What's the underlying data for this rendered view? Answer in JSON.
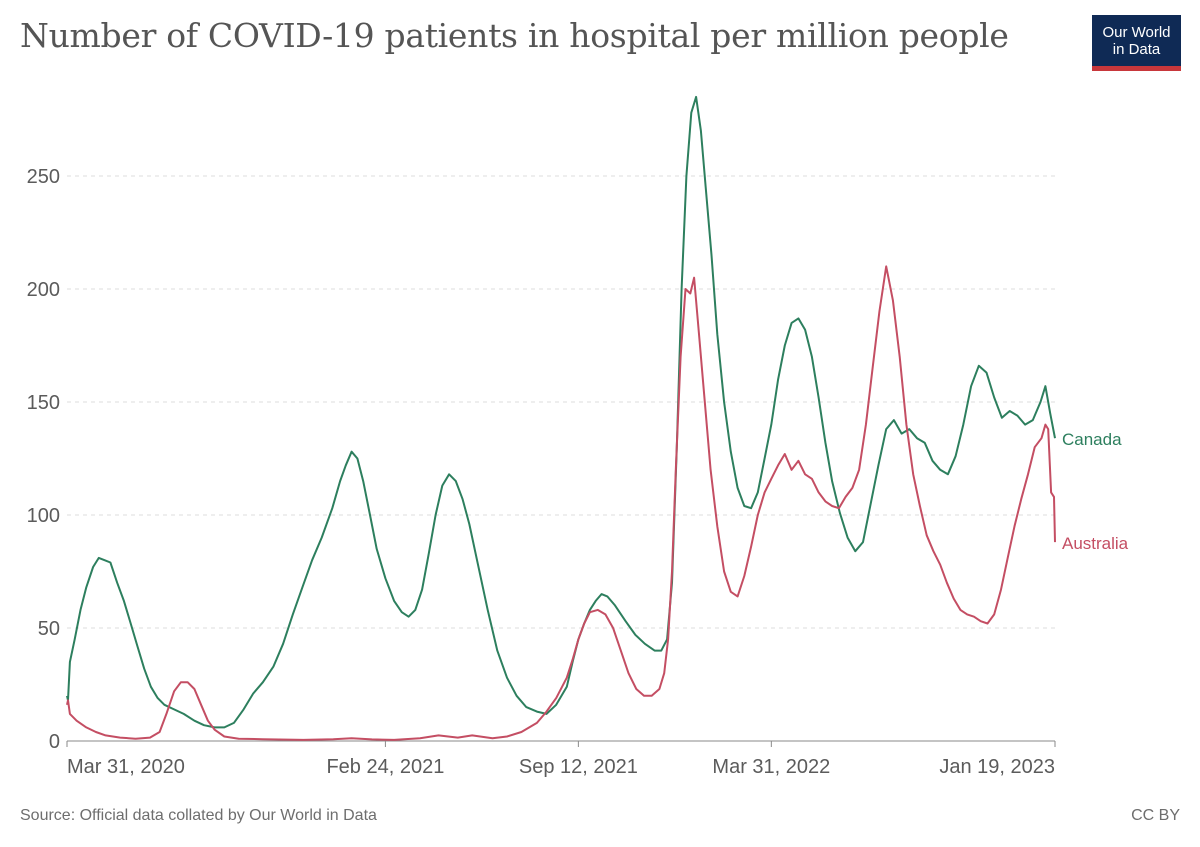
{
  "header": {
    "title": "Number of COVID-19 patients in hospital per million people",
    "logo_line1": "Our World",
    "logo_line2": "in Data"
  },
  "footer": {
    "source": "Source: Official data collated by Our World in Data",
    "license": "CC BY"
  },
  "colors": {
    "canada": "#2d7f5e",
    "australia": "#c44e63",
    "grid": "#dddddd",
    "axis_text": "#5b5b5b",
    "logo_bg": "#0f2a55",
    "logo_accent": "#c8373b"
  },
  "chart_data": {
    "type": "line",
    "title": "Number of COVID-19 patients in hospital per million people",
    "xlabel": "",
    "ylabel": "",
    "x_range": [
      "2020-03-31",
      "2023-01-19"
    ],
    "ylim": [
      0,
      280
    ],
    "y_ticks": [
      0,
      50,
      100,
      150,
      200,
      250
    ],
    "x_ticks": [
      "Mar 31, 2020",
      "Feb 24, 2021",
      "Sep 12, 2021",
      "Mar 31, 2022",
      "Jan 19, 2023"
    ],
    "grid": "horizontal dashed",
    "legend_placement": "inline labels at line ends (right)",
    "series": [
      {
        "name": "Canada",
        "color": "#2d7f5e",
        "points": [
          [
            "2020-03-31",
            20
          ],
          [
            "2020-04-01",
            18
          ],
          [
            "2020-04-03",
            35
          ],
          [
            "2020-04-08",
            45
          ],
          [
            "2020-04-14",
            58
          ],
          [
            "2020-04-20",
            68
          ],
          [
            "2020-04-27",
            77
          ],
          [
            "2020-05-03",
            81
          ],
          [
            "2020-05-09",
            80
          ],
          [
            "2020-05-15",
            79
          ],
          [
            "2020-05-22",
            70
          ],
          [
            "2020-05-29",
            62
          ],
          [
            "2020-06-05",
            52
          ],
          [
            "2020-06-12",
            42
          ],
          [
            "2020-06-19",
            32
          ],
          [
            "2020-06-26",
            24
          ],
          [
            "2020-07-03",
            19
          ],
          [
            "2020-07-10",
            16
          ],
          [
            "2020-07-20",
            14
          ],
          [
            "2020-07-30",
            12
          ],
          [
            "2020-08-10",
            9
          ],
          [
            "2020-08-20",
            7
          ],
          [
            "2020-08-31",
            6
          ],
          [
            "2020-09-10",
            6
          ],
          [
            "2020-09-20",
            8
          ],
          [
            "2020-09-30",
            14
          ],
          [
            "2020-10-10",
            21
          ],
          [
            "2020-10-20",
            26
          ],
          [
            "2020-10-31",
            33
          ],
          [
            "2020-11-10",
            43
          ],
          [
            "2020-11-20",
            56
          ],
          [
            "2020-11-30",
            68
          ],
          [
            "2020-12-10",
            80
          ],
          [
            "2020-12-20",
            90
          ],
          [
            "2020-12-31",
            103
          ],
          [
            "2021-01-08",
            115
          ],
          [
            "2021-01-14",
            122
          ],
          [
            "2021-01-20",
            128
          ],
          [
            "2021-01-26",
            125
          ],
          [
            "2021-02-01",
            115
          ],
          [
            "2021-02-08",
            100
          ],
          [
            "2021-02-15",
            85
          ],
          [
            "2021-02-24",
            72
          ],
          [
            "2021-03-05",
            62
          ],
          [
            "2021-03-13",
            57
          ],
          [
            "2021-03-20",
            55
          ],
          [
            "2021-03-27",
            58
          ],
          [
            "2021-04-03",
            67
          ],
          [
            "2021-04-10",
            83
          ],
          [
            "2021-04-17",
            100
          ],
          [
            "2021-04-24",
            113
          ],
          [
            "2021-05-01",
            118
          ],
          [
            "2021-05-08",
            115
          ],
          [
            "2021-05-15",
            107
          ],
          [
            "2021-05-22",
            96
          ],
          [
            "2021-05-31",
            78
          ],
          [
            "2021-06-10",
            58
          ],
          [
            "2021-06-20",
            40
          ],
          [
            "2021-06-30",
            28
          ],
          [
            "2021-07-10",
            20
          ],
          [
            "2021-07-20",
            15
          ],
          [
            "2021-07-31",
            13
          ],
          [
            "2021-08-10",
            12
          ],
          [
            "2021-08-20",
            16
          ],
          [
            "2021-08-31",
            24
          ],
          [
            "2021-09-06",
            35
          ],
          [
            "2021-09-12",
            45
          ],
          [
            "2021-09-18",
            52
          ],
          [
            "2021-09-24",
            58
          ],
          [
            "2021-09-30",
            62
          ],
          [
            "2021-10-06",
            65
          ],
          [
            "2021-10-12",
            64
          ],
          [
            "2021-10-20",
            60
          ],
          [
            "2021-10-31",
            53
          ],
          [
            "2021-11-10",
            47
          ],
          [
            "2021-11-20",
            43
          ],
          [
            "2021-11-30",
            40
          ],
          [
            "2021-12-07",
            40
          ],
          [
            "2021-12-13",
            45
          ],
          [
            "2021-12-18",
            70
          ],
          [
            "2021-12-23",
            130
          ],
          [
            "2021-12-28",
            200
          ],
          [
            "2022-01-02",
            250
          ],
          [
            "2022-01-07",
            278
          ],
          [
            "2022-01-12",
            285
          ],
          [
            "2022-01-17",
            270
          ],
          [
            "2022-01-22",
            245
          ],
          [
            "2022-01-28",
            215
          ],
          [
            "2022-02-03",
            180
          ],
          [
            "2022-02-10",
            150
          ],
          [
            "2022-02-17",
            128
          ],
          [
            "2022-02-24",
            112
          ],
          [
            "2022-03-03",
            104
          ],
          [
            "2022-03-10",
            103
          ],
          [
            "2022-03-17",
            110
          ],
          [
            "2022-03-24",
            125
          ],
          [
            "2022-03-31",
            140
          ],
          [
            "2022-04-07",
            160
          ],
          [
            "2022-04-14",
            175
          ],
          [
            "2022-04-21",
            185
          ],
          [
            "2022-04-28",
            187
          ],
          [
            "2022-05-05",
            182
          ],
          [
            "2022-05-12",
            170
          ],
          [
            "2022-05-19",
            152
          ],
          [
            "2022-05-26",
            132
          ],
          [
            "2022-06-02",
            115
          ],
          [
            "2022-06-10",
            101
          ],
          [
            "2022-06-18",
            90
          ],
          [
            "2022-06-26",
            84
          ],
          [
            "2022-07-04",
            88
          ],
          [
            "2022-07-12",
            105
          ],
          [
            "2022-07-20",
            122
          ],
          [
            "2022-07-28",
            138
          ],
          [
            "2022-08-05",
            142
          ],
          [
            "2022-08-13",
            136
          ],
          [
            "2022-08-21",
            138
          ],
          [
            "2022-08-29",
            134
          ],
          [
            "2022-09-06",
            132
          ],
          [
            "2022-09-14",
            124
          ],
          [
            "2022-09-22",
            120
          ],
          [
            "2022-09-30",
            118
          ],
          [
            "2022-10-08",
            126
          ],
          [
            "2022-10-16",
            140
          ],
          [
            "2022-10-24",
            157
          ],
          [
            "2022-11-01",
            166
          ],
          [
            "2022-11-09",
            163
          ],
          [
            "2022-11-17",
            152
          ],
          [
            "2022-11-25",
            143
          ],
          [
            "2022-12-03",
            146
          ],
          [
            "2022-12-11",
            144
          ],
          [
            "2022-12-19",
            140
          ],
          [
            "2022-12-27",
            142
          ],
          [
            "2023-01-04",
            150
          ],
          [
            "2023-01-09",
            157
          ],
          [
            "2023-01-14",
            145
          ],
          [
            "2023-01-19",
            134
          ]
        ]
      },
      {
        "name": "Australia",
        "color": "#c44e63",
        "points": [
          [
            "2020-03-31",
            16
          ],
          [
            "2020-04-01",
            18
          ],
          [
            "2020-04-03",
            12
          ],
          [
            "2020-04-10",
            9
          ],
          [
            "2020-04-20",
            6
          ],
          [
            "2020-04-30",
            4
          ],
          [
            "2020-05-10",
            2.5
          ],
          [
            "2020-05-25",
            1.5
          ],
          [
            "2020-06-10",
            1
          ],
          [
            "2020-06-25",
            1.5
          ],
          [
            "2020-07-05",
            4
          ],
          [
            "2020-07-12",
            12
          ],
          [
            "2020-07-20",
            22
          ],
          [
            "2020-07-27",
            26
          ],
          [
            "2020-08-03",
            26
          ],
          [
            "2020-08-10",
            23
          ],
          [
            "2020-08-17",
            16
          ],
          [
            "2020-08-24",
            9
          ],
          [
            "2020-08-31",
            5
          ],
          [
            "2020-09-10",
            2
          ],
          [
            "2020-09-25",
            1
          ],
          [
            "2020-10-20",
            0.8
          ],
          [
            "2020-12-01",
            0.5
          ],
          [
            "2021-01-01",
            0.8
          ],
          [
            "2021-01-20",
            1.2
          ],
          [
            "2021-02-10",
            0.7
          ],
          [
            "2021-03-05",
            0.5
          ],
          [
            "2021-04-01",
            1.2
          ],
          [
            "2021-04-20",
            2.5
          ],
          [
            "2021-05-10",
            1.5
          ],
          [
            "2021-05-25",
            2.5
          ],
          [
            "2021-06-15",
            1.2
          ],
          [
            "2021-06-30",
            2
          ],
          [
            "2021-07-15",
            4
          ],
          [
            "2021-07-31",
            8
          ],
          [
            "2021-08-10",
            13
          ],
          [
            "2021-08-20",
            19
          ],
          [
            "2021-08-31",
            28
          ],
          [
            "2021-09-06",
            36
          ],
          [
            "2021-09-12",
            45
          ],
          [
            "2021-09-18",
            52
          ],
          [
            "2021-09-24",
            57
          ],
          [
            "2021-10-02",
            58
          ],
          [
            "2021-10-10",
            56
          ],
          [
            "2021-10-18",
            50
          ],
          [
            "2021-10-26",
            40
          ],
          [
            "2021-11-03",
            30
          ],
          [
            "2021-11-11",
            23
          ],
          [
            "2021-11-19",
            20
          ],
          [
            "2021-11-27",
            20
          ],
          [
            "2021-12-05",
            23
          ],
          [
            "2021-12-10",
            30
          ],
          [
            "2021-12-14",
            45
          ],
          [
            "2021-12-18",
            75
          ],
          [
            "2021-12-22",
            120
          ],
          [
            "2021-12-27",
            170
          ],
          [
            "2022-01-01",
            200
          ],
          [
            "2022-01-06",
            198
          ],
          [
            "2022-01-10",
            205
          ],
          [
            "2022-01-15",
            180
          ],
          [
            "2022-01-21",
            150
          ],
          [
            "2022-01-27",
            120
          ],
          [
            "2022-02-03",
            95
          ],
          [
            "2022-02-10",
            75
          ],
          [
            "2022-02-17",
            66
          ],
          [
            "2022-02-24",
            64
          ],
          [
            "2022-03-03",
            73
          ],
          [
            "2022-03-10",
            86
          ],
          [
            "2022-03-17",
            100
          ],
          [
            "2022-03-24",
            110
          ],
          [
            "2022-03-31",
            116
          ],
          [
            "2022-04-07",
            122
          ],
          [
            "2022-04-14",
            127
          ],
          [
            "2022-04-21",
            120
          ],
          [
            "2022-04-28",
            124
          ],
          [
            "2022-05-05",
            118
          ],
          [
            "2022-05-12",
            116
          ],
          [
            "2022-05-19",
            110
          ],
          [
            "2022-05-26",
            106
          ],
          [
            "2022-06-02",
            104
          ],
          [
            "2022-06-09",
            103
          ],
          [
            "2022-06-16",
            108
          ],
          [
            "2022-06-23",
            112
          ],
          [
            "2022-06-30",
            120
          ],
          [
            "2022-07-07",
            140
          ],
          [
            "2022-07-14",
            165
          ],
          [
            "2022-07-21",
            190
          ],
          [
            "2022-07-28",
            210
          ],
          [
            "2022-08-04",
            195
          ],
          [
            "2022-08-11",
            170
          ],
          [
            "2022-08-18",
            140
          ],
          [
            "2022-08-25",
            118
          ],
          [
            "2022-09-01",
            104
          ],
          [
            "2022-09-08",
            91
          ],
          [
            "2022-09-15",
            84
          ],
          [
            "2022-09-22",
            78
          ],
          [
            "2022-09-29",
            70
          ],
          [
            "2022-10-06",
            63
          ],
          [
            "2022-10-13",
            58
          ],
          [
            "2022-10-20",
            56
          ],
          [
            "2022-10-27",
            55
          ],
          [
            "2022-11-03",
            53
          ],
          [
            "2022-11-10",
            52
          ],
          [
            "2022-11-17",
            56
          ],
          [
            "2022-11-24",
            67
          ],
          [
            "2022-12-01",
            81
          ],
          [
            "2022-12-08",
            95
          ],
          [
            "2022-12-15",
            107
          ],
          [
            "2022-12-22",
            118
          ],
          [
            "2022-12-29",
            130
          ],
          [
            "2023-01-05",
            134
          ],
          [
            "2023-01-09",
            140
          ],
          [
            "2023-01-12",
            138
          ],
          [
            "2023-01-15",
            110
          ],
          [
            "2023-01-18",
            108
          ],
          [
            "2023-01-19",
            88
          ]
        ]
      }
    ]
  }
}
